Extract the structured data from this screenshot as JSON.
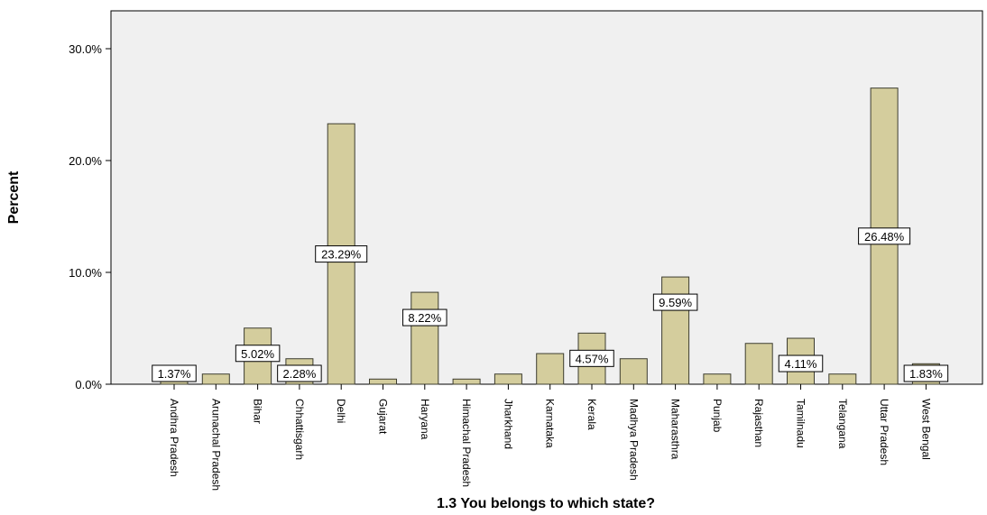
{
  "chart_data": {
    "type": "bar",
    "title": "",
    "xlabel": "1.3 You belongs to which state?",
    "ylabel": "Percent",
    "ylim": [
      0,
      30
    ],
    "yticks": [
      "0.0%",
      "10.0%",
      "20.0%",
      "30.0%"
    ],
    "grid": false,
    "categories": [
      "Andhra Pradesh",
      "Arunachal Pradesh",
      "Bihar",
      "Chhattisgarh",
      "Delhi",
      "Gujarat",
      "Haryana",
      "Himachal Pradesh",
      "Jharkhand",
      "Karnataka",
      "Kerala",
      "Madhya Pradesh",
      "Maharasthra",
      "Punjab",
      "Rajasthan",
      "Tamilnadu",
      "Telangana",
      "Uttar Pradesh",
      "West Bengal"
    ],
    "values": [
      1.37,
      0.91,
      5.02,
      2.28,
      23.29,
      0.46,
      8.22,
      0.46,
      0.91,
      2.74,
      4.57,
      2.28,
      9.59,
      0.91,
      3.65,
      4.11,
      0.91,
      26.48,
      1.83
    ],
    "data_labels": [
      {
        "category": "Andhra Pradesh",
        "text": "1.37%"
      },
      {
        "category": "Bihar",
        "text": "5.02%"
      },
      {
        "category": "Chhattisgarh",
        "text": "2.28%"
      },
      {
        "category": "Delhi",
        "text": "23.29%"
      },
      {
        "category": "Haryana",
        "text": "8.22%"
      },
      {
        "category": "Kerala",
        "text": "4.57%"
      },
      {
        "category": "Maharasthra",
        "text": "9.59%"
      },
      {
        "category": "Tamilnadu",
        "text": "4.11%"
      },
      {
        "category": "Uttar Pradesh",
        "text": "26.48%"
      },
      {
        "category": "West Bengal",
        "text": "1.83%"
      }
    ],
    "colors": {
      "bar_fill": "#d4cd9d",
      "bar_stroke": "#3d3d30",
      "plot_bg": "#f0f0f0"
    }
  }
}
